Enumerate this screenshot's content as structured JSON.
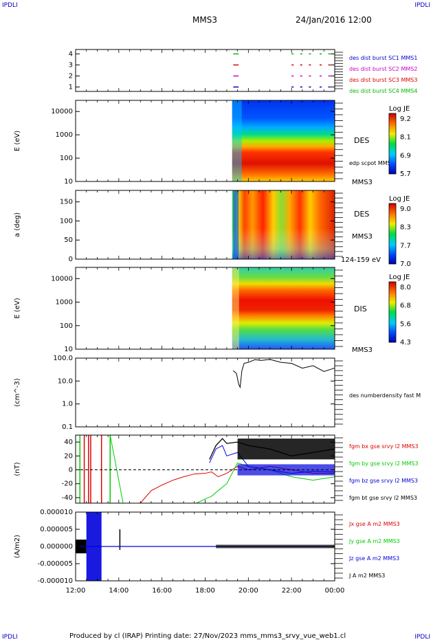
{
  "corners": {
    "left": "IPDLI",
    "right": "IPDLI",
    "bottom_left": "IPDLI",
    "bottom_right": "IPDLI"
  },
  "header": {
    "spacecraft": "MMS3",
    "date": "24/Jan/2016 12:00"
  },
  "footer": {
    "text": "Produced by cl (IRAP)   Printing date: 27/Nov/2023   mms_mms3_srvy_vue_web1.cl"
  },
  "colors": {
    "sc1": "#0000cc",
    "sc2": "#cc00cc",
    "sc3": "#dd0000",
    "sc4": "#00bb00",
    "bx": "#dd0000",
    "by": "#00cc00",
    "bz": "#0000dd",
    "bt": "#000000"
  },
  "chart_data": [
    {
      "type": "scatter",
      "id": "burst",
      "yticks": [
        "1",
        "2",
        "3",
        "4"
      ],
      "ylim": [
        0.6,
        4.4
      ],
      "legend": [
        "des dist burst SC1 MMS1",
        "des dist burst SC2 MMS2",
        "des dist burst SC3 MMS3",
        "des dist burst SC4 MMS4"
      ],
      "intervals_hours": [
        [
          19.3,
          19.55
        ],
        [
          22.0,
          22.1
        ],
        [
          22.4,
          22.5
        ],
        [
          22.8,
          22.9
        ],
        [
          23.3,
          23.4
        ],
        [
          23.7,
          23.8
        ]
      ]
    },
    {
      "type": "heatmap",
      "id": "des-energy",
      "ylabel": "E (eV)",
      "yticks": [
        "10",
        "100",
        "1000",
        "10000"
      ],
      "ylim": [
        10,
        30000
      ],
      "yscale": "log",
      "label": "DES",
      "sublabel": "edp scpot MMS3",
      "sc_label": "MMS3",
      "colorbar": {
        "title": "Log JE",
        "ticks": [
          "9.2",
          "8.1",
          "6.9",
          "5.7"
        ]
      }
    },
    {
      "type": "heatmap",
      "id": "des-pitch",
      "ylabel": "a (deg)",
      "yticks": [
        "0",
        "50",
        "100",
        "150"
      ],
      "ylim": [
        0,
        180
      ],
      "label": "DES",
      "sc_label": "MMS3",
      "energy_range": "124-159 eV",
      "colorbar": {
        "title": "Log JE",
        "ticks": [
          "9.0",
          "8.3",
          "7.7",
          "7.0"
        ]
      }
    },
    {
      "type": "heatmap",
      "id": "dis-energy",
      "ylabel": "E (eV)",
      "yticks": [
        "10",
        "100",
        "1000",
        "10000"
      ],
      "ylim": [
        10,
        30000
      ],
      "yscale": "log",
      "label": "DIS",
      "sc_label": "MMS3",
      "colorbar": {
        "title": "Log JE",
        "ticks": [
          "8.0",
          "6.8",
          "5.6",
          "4.3"
        ]
      }
    },
    {
      "type": "line",
      "id": "density",
      "ylabel": "(cm^-3)",
      "yticks": [
        "0.1",
        "1.0",
        "10.0",
        "100.0"
      ],
      "ylim": [
        0.1,
        100
      ],
      "yscale": "log",
      "legend": [
        "des numberdensity fast M"
      ],
      "x_hours": [
        19.3,
        19.45,
        19.55,
        19.62,
        19.7,
        19.8,
        20.0,
        20.3,
        20.6,
        21.0,
        21.5,
        22.0,
        22.5,
        23.0,
        23.5,
        24.0
      ],
      "values": [
        30,
        20,
        8,
        5,
        30,
        55,
        70,
        80,
        85,
        82,
        70,
        55,
        45,
        38,
        32,
        30
      ]
    },
    {
      "type": "line",
      "id": "magnetic-field",
      "ylabel": "(nT)",
      "yticks": [
        "-40",
        "-20",
        "0",
        "20",
        "40"
      ],
      "ylim": [
        -48,
        50
      ],
      "legend": [
        "fgm bx gse srvy l2 MMS3",
        "fgm by gse srvy l2 MMS3",
        "fgm bz gse srvy l2 MMS3",
        "fgm bt gse srvy l2 MMS3"
      ],
      "series": [
        {
          "x": [
            15.0,
            15.5,
            16.0,
            16.5,
            17.0,
            17.5,
            18.0,
            18.3,
            18.6,
            19.0,
            19.5,
            20.0,
            21.0,
            22.0,
            23.0,
            24.0
          ],
          "values": [
            -48,
            -30,
            -22,
            -15,
            -10,
            -6,
            -5,
            -3,
            -10,
            -5,
            5,
            0,
            5,
            0,
            -5,
            -5
          ]
        },
        {
          "x": [
            17.6,
            18.0,
            18.3,
            18.6,
            19.0,
            19.5,
            20.0,
            21.0,
            22.0,
            23.0,
            24.0
          ],
          "values": [
            -48,
            -42,
            -38,
            -30,
            -20,
            10,
            5,
            0,
            -10,
            -15,
            -10
          ]
        },
        {
          "x": [
            18.2,
            18.5,
            18.8,
            19.0,
            19.5,
            20.0,
            21.0,
            22.0,
            23.0,
            24.0
          ],
          "values": [
            10,
            30,
            35,
            20,
            25,
            5,
            0,
            -5,
            -2,
            -3
          ]
        },
        {
          "x": [
            18.2,
            18.5,
            18.8,
            19.0,
            19.5,
            20.0,
            21.0,
            22.0,
            23.0,
            24.0
          ],
          "values": [
            15,
            35,
            45,
            38,
            40,
            35,
            30,
            20,
            25,
            30
          ]
        }
      ]
    },
    {
      "type": "line",
      "id": "current-density",
      "ylabel": "(A/m2)",
      "yticks": [
        "-0.000010",
        "-0.000005",
        "0.000000",
        "0.000005",
        "0.000010"
      ],
      "ylim": [
        -1e-05,
        1e-05
      ],
      "legend": [
        "Jx gse A m2 MMS3",
        "Jy gse A m2 MMS3",
        "Jz gse A m2 MMS3",
        "J A m2 MMS3"
      ]
    }
  ],
  "time_axis": {
    "ticks": [
      "12:00",
      "14:00",
      "16:00",
      "18:00",
      "20:00",
      "22:00",
      "00:00"
    ]
  }
}
